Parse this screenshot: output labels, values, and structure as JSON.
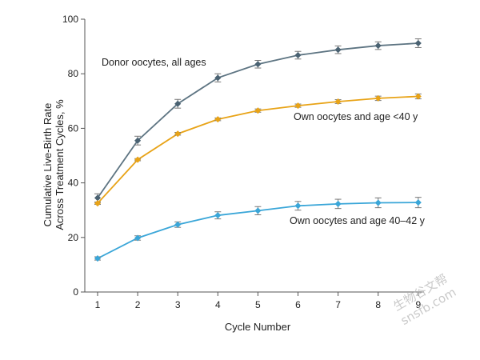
{
  "chart_data": {
    "type": "line",
    "xlabel": "Cycle Number",
    "ylabel_lines": [
      "Cumulative Live-Birth Rate",
      "Across Treatment Cycles, %"
    ],
    "x": [
      1,
      2,
      3,
      4,
      5,
      6,
      7,
      8,
      9
    ],
    "x_ticks": [
      "1",
      "2",
      "3",
      "4",
      "5",
      "6",
      "7",
      "8",
      "9"
    ],
    "ylim": [
      0,
      100
    ],
    "y_ticks": [
      "0",
      "20",
      "40",
      "60",
      "80",
      "100"
    ],
    "grid": false,
    "series": [
      {
        "name": "Donor oocytes, all ages",
        "color": "#4a6272",
        "marker": "diamond",
        "values": [
          34.5,
          55.5,
          69,
          78.5,
          83.5,
          86.8,
          88.8,
          90.3,
          91.2
        ],
        "error": [
          1.5,
          1.6,
          1.6,
          1.5,
          1.4,
          1.4,
          1.4,
          1.4,
          1.6
        ]
      },
      {
        "name": "Own oocytes and age <40 y",
        "color": "#e8a317",
        "marker": "diamond",
        "values": [
          32.5,
          48.5,
          58,
          63.3,
          66.5,
          68.3,
          69.8,
          71,
          71.7
        ],
        "error": [
          0.4,
          0.4,
          0.5,
          0.5,
          0.6,
          0.6,
          0.7,
          0.8,
          0.9
        ]
      },
      {
        "name": "Own oocytes and age 40–42 y",
        "color": "#3aa6d8",
        "marker": "diamond",
        "values": [
          12.3,
          19.8,
          24.7,
          28.1,
          29.8,
          31.6,
          32.3,
          32.7,
          32.8
        ],
        "error": [
          0.6,
          0.8,
          1.0,
          1.3,
          1.5,
          1.6,
          1.7,
          1.8,
          1.9
        ]
      }
    ]
  },
  "watermark": {
    "line1": "生物谷文帮",
    "line2": "snsfb.com"
  }
}
